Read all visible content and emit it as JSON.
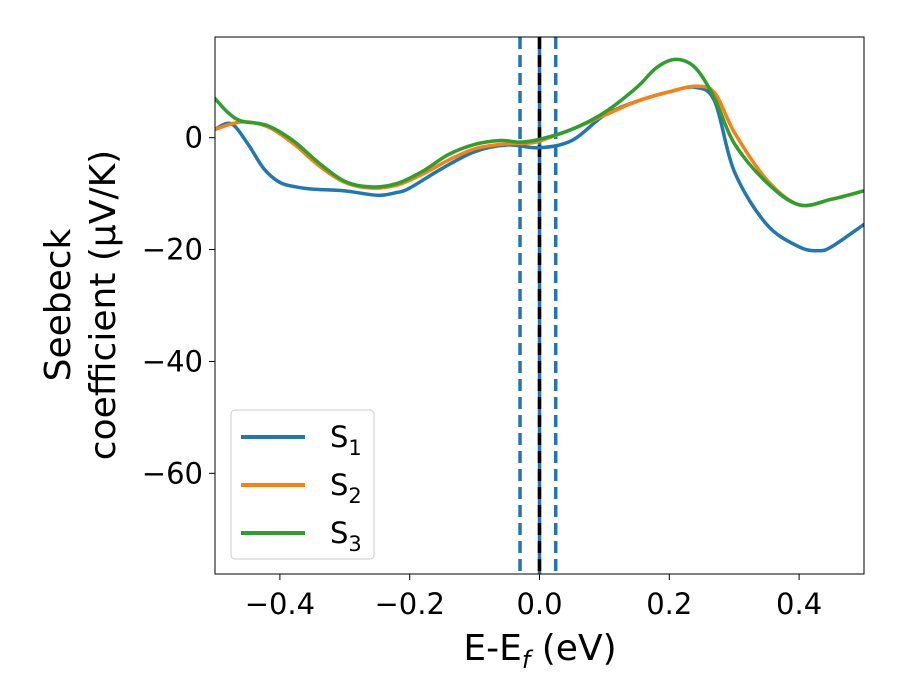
{
  "chart_data": {
    "type": "line",
    "xlabel_main": "E-E",
    "xlabel_sub": "f",
    "xlabel_unit": " (eV)",
    "ylabel_line1": "Seebeck",
    "ylabel_line2": "coefficient  (μV/K)",
    "xlim": [
      -0.5,
      0.5
    ],
    "ylim": [
      -78,
      18
    ],
    "xticks": [
      -0.4,
      -0.2,
      0.0,
      0.2,
      0.4
    ],
    "xtick_labels": [
      "−0.4",
      "−0.2",
      "0.0",
      "0.2",
      "0.4"
    ],
    "yticks": [
      0,
      -20,
      -40,
      -60
    ],
    "ytick_labels": [
      "0",
      "−20",
      "−40",
      "−60"
    ],
    "legend_position": "lower-left",
    "vlines": [
      {
        "x": -0.03,
        "style": "dashed",
        "color": "#1f77b4"
      },
      {
        "x": 0.0,
        "style": "solid",
        "color": "#1f77b4"
      },
      {
        "x": 0.0,
        "style": "dashed",
        "color": "#000000"
      },
      {
        "x": 0.025,
        "style": "dashed",
        "color": "#1f77b4"
      }
    ],
    "series": [
      {
        "name": "S",
        "subscript": "1",
        "color": "#1f77b4",
        "x": [
          -0.5,
          -0.475,
          -0.45,
          -0.425,
          -0.4,
          -0.375,
          -0.35,
          -0.3,
          -0.25,
          -0.22,
          -0.2,
          -0.15,
          -0.1,
          -0.05,
          0.0,
          0.05,
          0.1,
          0.15,
          0.2,
          0.24,
          0.27,
          0.3,
          0.35,
          0.4,
          0.43,
          0.45,
          0.5
        ],
        "y": [
          1.5,
          2.5,
          -1.0,
          -5.5,
          -8.0,
          -8.8,
          -9.2,
          -9.5,
          -10.3,
          -9.8,
          -9.0,
          -5.5,
          -2.5,
          -1.3,
          -1.8,
          -0.5,
          4.0,
          6.5,
          8.2,
          9.0,
          6.5,
          -6.0,
          -15.5,
          -19.5,
          -20.2,
          -19.5,
          -15.5
        ]
      },
      {
        "name": "S",
        "subscript": "2",
        "color": "#ff7f0e",
        "x": [
          -0.5,
          -0.46,
          -0.42,
          -0.38,
          -0.34,
          -0.3,
          -0.26,
          -0.22,
          -0.18,
          -0.14,
          -0.1,
          -0.06,
          -0.02,
          0.0,
          0.05,
          0.1,
          0.15,
          0.2,
          0.24,
          0.27,
          0.3,
          0.35,
          0.4,
          0.45,
          0.5
        ],
        "y": [
          1.5,
          2.8,
          2.0,
          -1.0,
          -5.0,
          -8.0,
          -9.0,
          -8.5,
          -6.5,
          -4.0,
          -2.0,
          -1.2,
          -1.0,
          -0.6,
          1.5,
          4.0,
          6.5,
          8.2,
          9.2,
          8.0,
          1.0,
          -7.5,
          -12.0,
          -11.0,
          -9.5
        ]
      },
      {
        "name": "S",
        "subscript": "3",
        "color": "#2ca02c",
        "x": [
          -0.5,
          -0.48,
          -0.46,
          -0.42,
          -0.38,
          -0.34,
          -0.3,
          -0.26,
          -0.22,
          -0.18,
          -0.14,
          -0.1,
          -0.06,
          -0.03,
          0.0,
          0.05,
          0.1,
          0.15,
          0.18,
          0.21,
          0.24,
          0.27,
          0.3,
          0.35,
          0.4,
          0.45,
          0.5
        ],
        "y": [
          7.0,
          4.5,
          3.0,
          2.2,
          -0.5,
          -4.5,
          -7.8,
          -8.8,
          -8.2,
          -6.0,
          -3.0,
          -1.2,
          -0.5,
          -0.8,
          -0.3,
          1.5,
          4.5,
          9.0,
          12.5,
          14.0,
          12.5,
          7.0,
          -1.0,
          -8.0,
          -12.0,
          -11.0,
          -9.5
        ]
      }
    ]
  }
}
